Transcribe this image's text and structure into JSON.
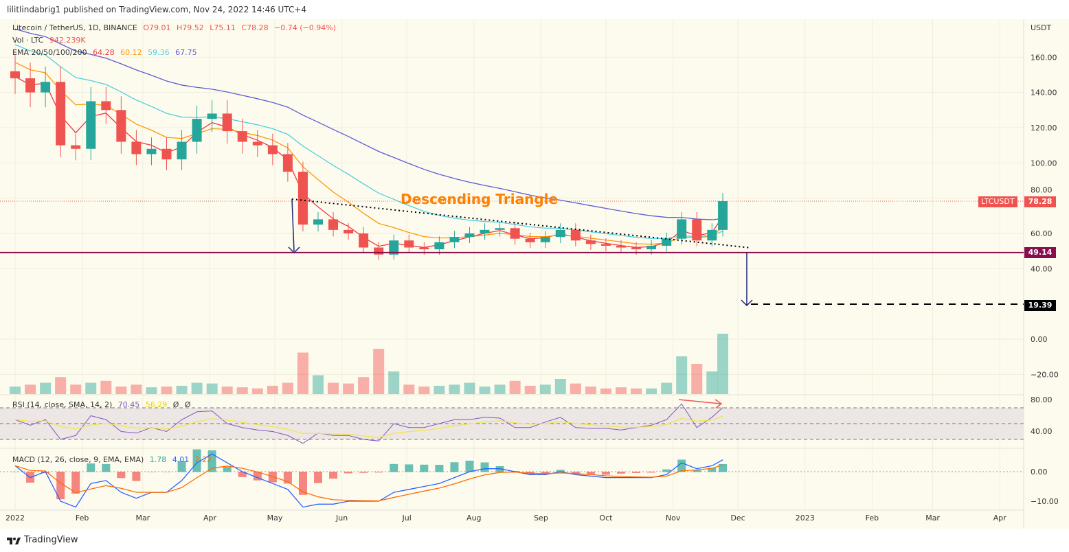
{
  "header": {
    "published": "lilitlindabrig1 published on TradingView.com, Nov 24, 2022 14:46 UTC+4"
  },
  "legend": {
    "symbol": "Litecoin / TetherUS, 1D, BINANCE",
    "open": "O79.01",
    "high": "H79.52",
    "low": "L75.11",
    "close": "C78.28",
    "change": "−0.74 (−0.94%)",
    "vol_label": "Vol · LTC",
    "vol_value": "942.239K",
    "ema_label": "EMA 20/50/100/200",
    "ema20": "64.28",
    "ema50": "60.12",
    "ema100": "59.36",
    "ema200": "67.75",
    "rsi_label": "RSI (14, close, SMA, 14, 2)",
    "rsi_value": "70.45",
    "rsi_sma": "56.29",
    "rsi_x1": "Ø",
    "rsi_x2": "Ø",
    "macd_label": "MACD (12, 26, close, 9, EMA, EMA)",
    "macd_hist": "1.78",
    "macd_line": "4.01",
    "macd_signal": "2.22"
  },
  "colors": {
    "up": "#26a69a",
    "down": "#ef5350",
    "ema20": "#f23645",
    "ema50": "#ff9800",
    "ema100": "#4dd0e1",
    "ema200": "#5b5bd6",
    "support": "#880e4f",
    "rsi": "#7e57c2",
    "rsi_sma": "#f5e642",
    "annotation": "#ff7f00"
  },
  "annotations": {
    "pattern": "Descending Triangle",
    "symbol_tag": "LTCUSDT",
    "last_price": "78.28",
    "support": "49.14",
    "target": "19.39"
  },
  "footer": {
    "brand": "TradingView"
  },
  "chart_data": {
    "type": "candlestick",
    "title": "Litecoin / TetherUS, 1D, BINANCE",
    "ylabel": "USDT",
    "yticks": [
      "160.00",
      "140.00",
      "120.00",
      "100.00",
      "80.00",
      "60.00",
      "40.00",
      "0.00",
      "−20.00"
    ],
    "ylim": [
      -30,
      170
    ],
    "xticks": [
      "2022",
      "Feb",
      "Mar",
      "Apr",
      "May",
      "Jun",
      "Jul",
      "Aug",
      "Sep",
      "Oct",
      "Nov",
      "Dec",
      "2023",
      "Feb",
      "Mar",
      "Apr"
    ],
    "rsi_ticks": [
      "80.00",
      "40.00"
    ],
    "macd_ticks": [
      "0.00",
      "−10.00"
    ],
    "weeks": [
      "2022-01-01",
      "2022-01-08",
      "2022-01-15",
      "2022-01-22",
      "2022-01-29",
      "2022-02-05",
      "2022-02-12",
      "2022-02-19",
      "2022-02-26",
      "2022-03-05",
      "2022-03-12",
      "2022-03-19",
      "2022-03-26",
      "2022-04-02",
      "2022-04-09",
      "2022-04-16",
      "2022-04-23",
      "2022-04-30",
      "2022-05-07",
      "2022-05-14",
      "2022-05-21",
      "2022-05-28",
      "2022-06-04",
      "2022-06-11",
      "2022-06-18",
      "2022-06-25",
      "2022-07-02",
      "2022-07-09",
      "2022-07-16",
      "2022-07-23",
      "2022-07-30",
      "2022-08-06",
      "2022-08-13",
      "2022-08-20",
      "2022-08-27",
      "2022-09-03",
      "2022-09-10",
      "2022-09-17",
      "2022-09-24",
      "2022-10-01",
      "2022-10-08",
      "2022-10-15",
      "2022-10-22",
      "2022-10-29",
      "2022-11-05",
      "2022-11-12",
      "2022-11-19",
      "2022-11-24"
    ],
    "close": [
      148,
      140,
      146,
      110,
      108,
      135,
      130,
      112,
      105,
      108,
      102,
      112,
      125,
      128,
      118,
      112,
      110,
      105,
      95,
      65,
      68,
      62,
      60,
      52,
      48,
      56,
      52,
      51,
      55,
      58,
      60,
      62,
      63,
      57,
      55,
      58,
      62,
      56,
      54,
      53,
      52,
      51,
      53,
      57,
      68,
      56,
      62,
      78.28
    ],
    "volume": [
      20,
      25,
      30,
      45,
      25,
      30,
      35,
      20,
      25,
      18,
      20,
      22,
      30,
      28,
      20,
      18,
      15,
      22,
      30,
      110,
      50,
      30,
      28,
      45,
      120,
      60,
      25,
      20,
      22,
      25,
      30,
      20,
      25,
      35,
      22,
      25,
      40,
      28,
      20,
      15,
      18,
      15,
      15,
      30,
      100,
      80,
      60,
      160
    ],
    "rsi": [
      55,
      48,
      55,
      30,
      35,
      60,
      55,
      40,
      38,
      45,
      40,
      55,
      65,
      66,
      50,
      45,
      42,
      40,
      35,
      25,
      38,
      35,
      35,
      30,
      28,
      50,
      45,
      45,
      50,
      55,
      55,
      58,
      57,
      45,
      45,
      52,
      58,
      45,
      44,
      44,
      42,
      45,
      48,
      55,
      75,
      45,
      58,
      70.45
    ],
    "macd": [
      2,
      -2,
      0,
      -10,
      -12,
      -4,
      -3,
      -7,
      -9,
      -7,
      -7,
      -3,
      3,
      6,
      3,
      0,
      -2,
      -4,
      -6,
      -12,
      -11,
      -11,
      -10,
      -10,
      -10,
      -7,
      -6,
      -5,
      -4,
      -2,
      0,
      1,
      1,
      0,
      -1,
      -1,
      0,
      -1,
      -1.5,
      -2,
      -2,
      -2,
      -2,
      -1,
      3,
      1,
      2,
      4.01
    ]
  }
}
